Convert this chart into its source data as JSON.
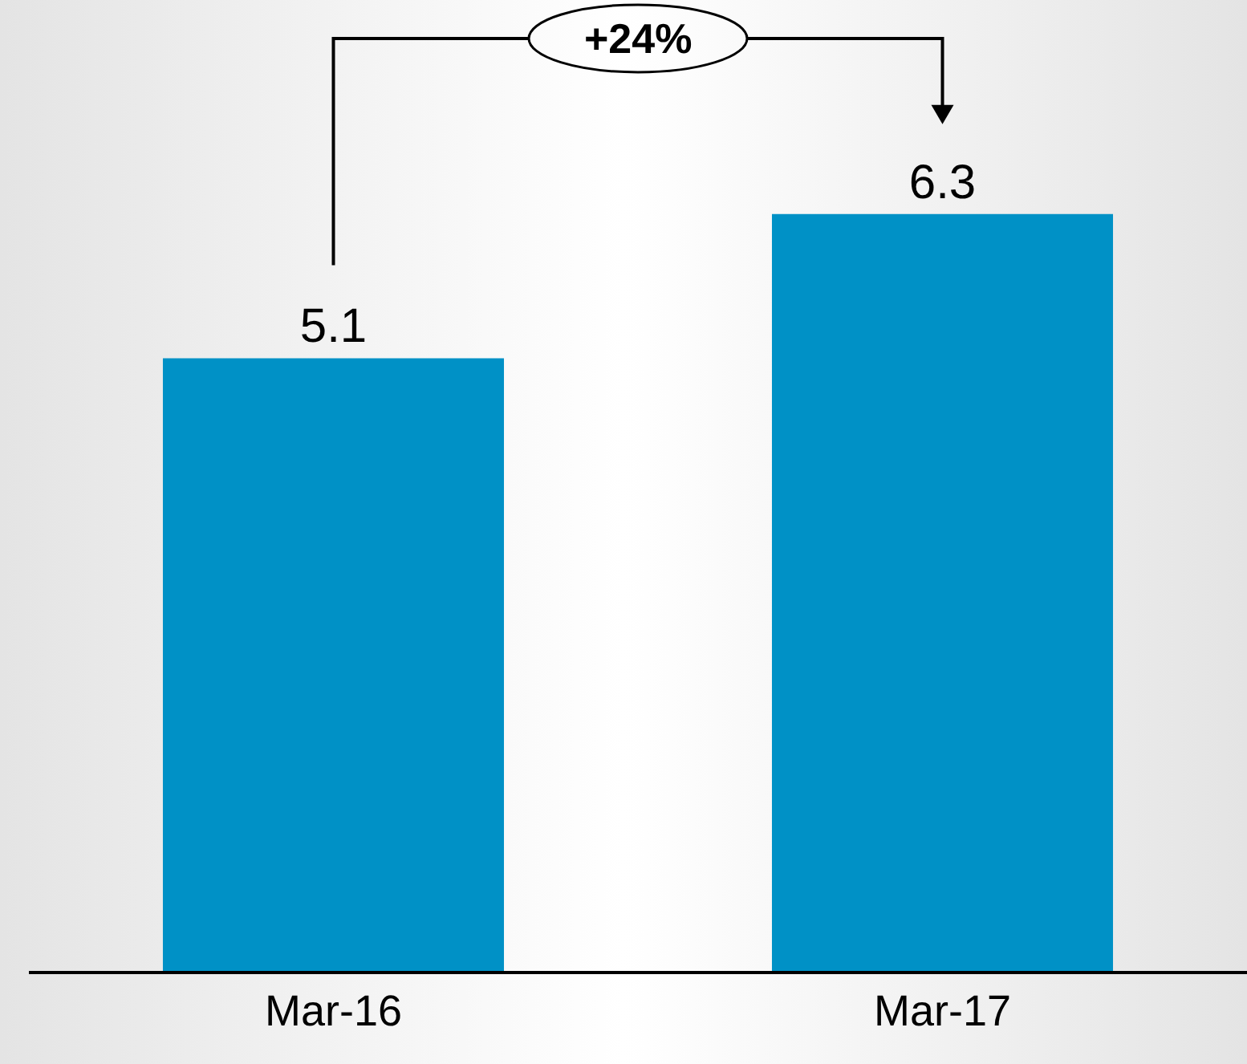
{
  "chart_data": {
    "type": "bar",
    "categories": [
      "Mar-16",
      "Mar-17"
    ],
    "values": [
      5.1,
      6.3
    ],
    "color": "#0091c6",
    "data_labels": true,
    "legend": false,
    "annotations": [
      "+24%"
    ]
  }
}
